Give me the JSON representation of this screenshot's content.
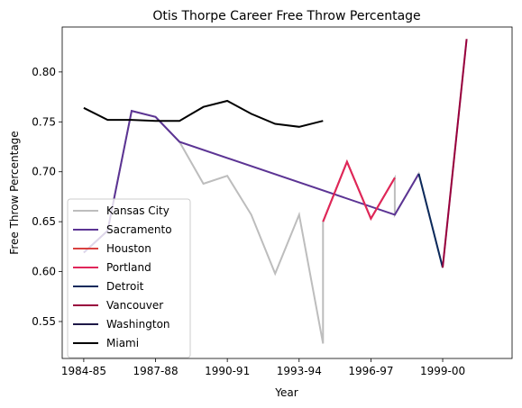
{
  "chart_data": {
    "type": "line",
    "title": "Otis Thorpe Career Free Throw Percentage",
    "xlabel": "Year",
    "ylabel": "Free Throw Percentage",
    "x_tick_labels": [
      "1984-85",
      "1987-88",
      "1990-91",
      "1993-94",
      "1996-97",
      "1999-00"
    ],
    "x_tick_index": [
      0,
      3,
      6,
      9,
      12,
      15
    ],
    "xlim": [
      -0.9,
      17.9
    ],
    "y_ticks": [
      "0.55",
      "0.60",
      "0.65",
      "0.70",
      "0.75",
      "0.80"
    ],
    "ylim": [
      0.513,
      0.845
    ],
    "grid": false,
    "legend_position": "lower-left",
    "series": [
      {
        "name": "Kansas City",
        "color": "#bdbdbd",
        "points": [
          [
            0,
            0.619
          ],
          [
            1,
            0.641
          ],
          [
            2,
            0.761
          ],
          [
            3,
            0.755
          ],
          [
            4,
            0.73
          ],
          [
            5,
            0.688
          ],
          [
            6,
            0.696
          ],
          [
            7,
            0.657
          ],
          [
            8,
            0.598
          ],
          [
            9,
            0.657
          ],
          [
            10,
            0.528
          ],
          [
            10,
            0.65
          ],
          [
            11,
            0.71
          ],
          [
            12,
            0.653
          ],
          [
            13,
            0.694
          ],
          [
            13,
            0.657
          ],
          [
            14,
            0.698
          ],
          [
            15,
            0.604
          ],
          [
            16,
            0.833
          ]
        ]
      },
      {
        "name": "Sacramento",
        "color": "#5c3494",
        "points": [
          [
            0,
            0.619
          ],
          [
            1,
            0.641
          ],
          [
            2,
            0.761
          ],
          [
            3,
            0.755
          ],
          [
            4,
            0.73
          ],
          [
            13,
            0.657
          ],
          [
            14,
            0.698
          ]
        ]
      },
      {
        "name": "Houston",
        "color": "#d9413f",
        "points": [
          [
            10,
            0.65
          ],
          [
            11,
            0.71
          ],
          [
            12,
            0.653
          ],
          [
            13,
            0.694
          ]
        ]
      },
      {
        "name": "Portland",
        "color": "#e0265a",
        "points": [
          [
            10,
            0.65
          ],
          [
            11,
            0.71
          ],
          [
            12,
            0.653
          ],
          [
            13,
            0.694
          ]
        ]
      },
      {
        "name": "Detroit",
        "color": "#0c2a5c",
        "points": [
          [
            14,
            0.698
          ],
          [
            15,
            0.604
          ]
        ]
      },
      {
        "name": "Vancouver",
        "color": "#99003d",
        "points": [
          [
            15,
            0.604
          ],
          [
            16,
            0.833
          ]
        ]
      },
      {
        "name": "Washington",
        "color": "#1e1847",
        "points": []
      },
      {
        "name": "Miami",
        "color": "#000000",
        "points": [
          [
            0,
            0.764
          ],
          [
            1,
            0.752
          ],
          [
            2,
            0.752
          ],
          [
            3,
            0.751
          ],
          [
            4,
            0.751
          ],
          [
            5,
            0.765
          ],
          [
            6,
            0.771
          ],
          [
            7,
            0.758
          ],
          [
            8,
            0.748
          ],
          [
            9,
            0.745
          ],
          [
            10,
            0.751
          ]
        ]
      }
    ]
  }
}
